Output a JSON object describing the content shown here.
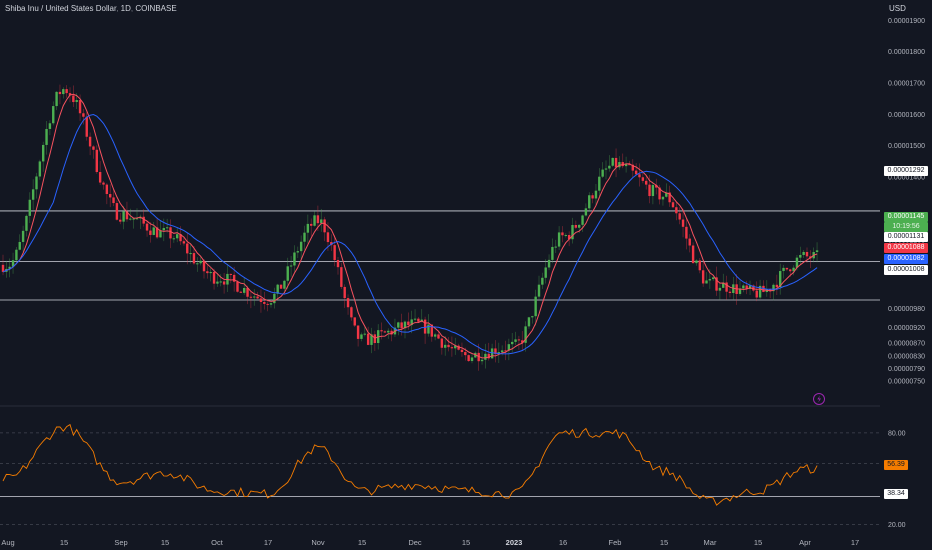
{
  "header": {
    "symbol": "Shiba Inu / United States Dollar",
    "interval": "1D",
    "exchange": "COINBASE",
    "currency": "USD"
  },
  "badges": {
    "last_price": "0.00001145",
    "countdown": "10:19:56",
    "level_white": "0.00001131",
    "ma_red": "0.00001088",
    "ma_blue": "0.00001082",
    "level_low": "0.00001008",
    "level_high": "0.00001292",
    "rsi_value": "56.39",
    "rsi_level": "38.34"
  },
  "colors": {
    "background": "#131722",
    "up": "#26a69a",
    "up_candle": "#4caf50",
    "down": "#f23645",
    "ma_fast": "#f7525f",
    "ma_slow": "#2962ff",
    "rsi": "#f57c00",
    "last_price_badge": "#4caf50",
    "rsi_badge": "#f57c00"
  },
  "chart_data": [
    {
      "type": "candlestick",
      "title": "Shiba Inu / United States Dollar, 1D, COINBASE",
      "ylabel": "USD",
      "ylim": [
        7.4e-06,
        1.92e-05
      ],
      "y_ticks": [
        "0.00001900",
        "0.00001800",
        "0.00001700",
        "0.00001600",
        "0.00001500",
        "0.00001400",
        "0.00001200",
        "0.00000980",
        "0.00000920",
        "0.00000870",
        "0.00000830",
        "0.00000790",
        "0.00000750"
      ],
      "x_ticks": [
        "Aug",
        "15",
        "Sep",
        "15",
        "Oct",
        "17",
        "Nov",
        "15",
        "Dec",
        "15",
        "2023",
        "16",
        "Feb",
        "15",
        "Mar",
        "15",
        "Apr",
        "17"
      ],
      "grid": false,
      "horizontal_levels": [
        1.292e-05,
        1.131e-05,
        1.008e-05
      ],
      "close_anchors": [
        {
          "x": "Aug",
          "y": 1.12e-05
        },
        {
          "x": "Aug 15",
          "y": 1.68e-05
        },
        {
          "x": "Sep",
          "y": 1.28e-05
        },
        {
          "x": "Sep 15",
          "y": 1.22e-05
        },
        {
          "x": "Oct",
          "y": 1.08e-05
        },
        {
          "x": "Oct 17",
          "y": 1.01e-05
        },
        {
          "x": "Nov",
          "y": 1.26e-05
        },
        {
          "x": "Nov 15",
          "y": 8.8e-06
        },
        {
          "x": "Dec",
          "y": 9.3e-06
        },
        {
          "x": "Dec 15",
          "y": 8.3e-06
        },
        {
          "x": "2023",
          "y": 8.6e-06
        },
        {
          "x": "Jan 16",
          "y": 1.21e-05
        },
        {
          "x": "Feb",
          "y": 1.44e-05
        },
        {
          "x": "Feb 15",
          "y": 1.34e-05
        },
        {
          "x": "Mar",
          "y": 1.06e-05
        },
        {
          "x": "Mar 15",
          "y": 1.03e-05
        },
        {
          "x": "Apr",
          "y": 1.145e-05
        }
      ],
      "series": [
        {
          "name": "",
          "kind": "ma_fast",
          "color": "#f7525f"
        },
        {
          "name": "",
          "kind": "ma_slow",
          "color": "#2962ff"
        }
      ]
    },
    {
      "type": "line",
      "ylim": [
        15,
        95
      ],
      "y_ticks": [
        "80.00",
        "60.00",
        "20.00"
      ],
      "horizontal_levels": [
        38.34
      ],
      "dashed_levels": [
        80,
        60,
        20
      ],
      "anchors": [
        {
          "x": "Aug",
          "y": 50
        },
        {
          "x": "Aug 15",
          "y": 84
        },
        {
          "x": "Sep",
          "y": 48
        },
        {
          "x": "Sep 15",
          "y": 54
        },
        {
          "x": "Oct",
          "y": 42
        },
        {
          "x": "Oct 17",
          "y": 40
        },
        {
          "x": "Nov",
          "y": 70
        },
        {
          "x": "Nov 15",
          "y": 42
        },
        {
          "x": "Dec",
          "y": 46
        },
        {
          "x": "Dec 15",
          "y": 42
        },
        {
          "x": "2023",
          "y": 40
        },
        {
          "x": "Jan 16",
          "y": 80
        },
        {
          "x": "Feb",
          "y": 80
        },
        {
          "x": "Feb 15",
          "y": 55
        },
        {
          "x": "Mar",
          "y": 35
        },
        {
          "x": "Mar 15",
          "y": 42
        },
        {
          "x": "Apr",
          "y": 56.39
        }
      ]
    }
  ]
}
